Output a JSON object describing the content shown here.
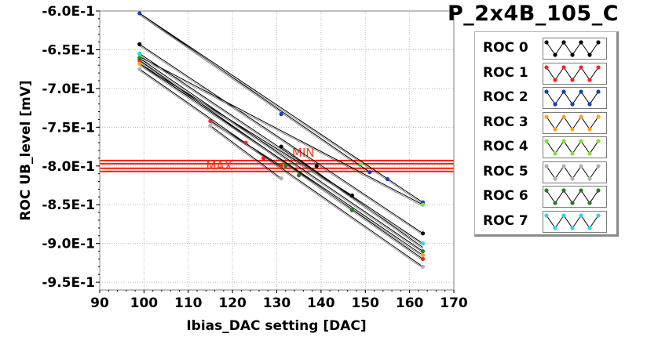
{
  "chart_data": {
    "type": "line",
    "title": "P_2x4B_105_C",
    "xlabel": "Ibias_DAC setting [DAC]",
    "ylabel": "ROC UB_level [mV]",
    "xlim": [
      90,
      170
    ],
    "ylim": [
      -0.96,
      -0.6
    ],
    "xticks": [
      90,
      100,
      110,
      120,
      130,
      140,
      150,
      160,
      170
    ],
    "xtick_labels": [
      "90",
      "100",
      "110",
      "120",
      "130",
      "140",
      "150",
      "160",
      "170"
    ],
    "yticks": [
      -0.6,
      -0.65,
      -0.7,
      -0.75,
      -0.8,
      -0.85,
      -0.9,
      -0.95
    ],
    "ytick_labels": [
      "-6.0E-1",
      "-6.5E-1",
      "-7.0E-1",
      "-7.5E-1",
      "-8.0E-1",
      "-8.5E-1",
      "-9.0E-1",
      "-9.5E-1"
    ],
    "grid": true,
    "legend_position": "right",
    "thresholds": [
      {
        "label": "MAX",
        "y": -0.805,
        "label_x": 117
      },
      {
        "label": "MIN",
        "y": -0.795,
        "label_x": 136
      }
    ],
    "series": [
      {
        "name": "ROC 0",
        "color": "#000000",
        "segments": [
          [
            [
              99,
              -0.603
            ],
            [
              151,
              -0.808
            ]
          ],
          [
            [
              99,
              -0.643
            ],
            [
              163,
              -0.887
            ]
          ],
          [
            [
              99,
              -0.668
            ],
            [
              147,
              -0.838
            ]
          ],
          [
            [
              131,
              -0.775
            ],
            [
              163,
              -0.905
            ]
          ]
        ],
        "points": [
          [
            99,
            -0.643
          ],
          [
            131,
            -0.775
          ],
          [
            139,
            -0.8
          ],
          [
            147,
            -0.838
          ],
          [
            163,
            -0.887
          ]
        ]
      },
      {
        "name": "ROC 1",
        "color": "#ff2020",
        "segments": [
          [
            [
              99,
              -0.664
            ],
            [
              163,
              -0.92
            ]
          ],
          [
            [
              115,
              -0.742
            ],
            [
              131,
              -0.8
            ]
          ]
        ],
        "points": [
          [
            99,
            -0.664
          ],
          [
            115,
            -0.742
          ],
          [
            123,
            -0.77
          ],
          [
            127,
            -0.79
          ],
          [
            131,
            -0.8
          ],
          [
            163,
            -0.92
          ]
        ]
      },
      {
        "name": "ROC 2",
        "color": "#1040c0",
        "segments": [
          [
            [
              99,
              -0.603
            ],
            [
              163,
              -0.847
            ]
          ]
        ],
        "points": [
          [
            99,
            -0.603
          ],
          [
            131,
            -0.733
          ],
          [
            151,
            -0.808
          ],
          [
            155,
            -0.817
          ],
          [
            163,
            -0.847
          ]
        ]
      },
      {
        "name": "ROC 3",
        "color": "#ffa020",
        "segments": [
          [
            [
              99,
              -0.668
            ],
            [
              163,
              -0.915
            ]
          ]
        ],
        "points": [
          [
            99,
            -0.668
          ],
          [
            163,
            -0.915
          ]
        ]
      },
      {
        "name": "ROC 4",
        "color": "#80e040",
        "segments": [
          [
            [
              99,
              -0.659
            ],
            [
              163,
              -0.85
            ]
          ]
        ],
        "points": [
          [
            99,
            -0.659
          ],
          [
            149,
            -0.797
          ],
          [
            163,
            -0.85
          ]
        ]
      },
      {
        "name": "ROC 5",
        "color": "#b0b0b0",
        "segments": [
          [
            [
              99,
              -0.675
            ],
            [
              163,
              -0.93
            ]
          ],
          [
            [
              115,
              -0.748
            ],
            [
              131,
              -0.816
            ]
          ]
        ],
        "points": [
          [
            99,
            -0.675
          ],
          [
            115,
            -0.748
          ],
          [
            131,
            -0.816
          ],
          [
            163,
            -0.93
          ]
        ]
      },
      {
        "name": "ROC 6",
        "color": "#208020",
        "segments": [
          [
            [
              99,
              -0.661
            ],
            [
              163,
              -0.91
            ]
          ]
        ],
        "points": [
          [
            99,
            -0.661
          ],
          [
            132,
            -0.8
          ],
          [
            135,
            -0.812
          ],
          [
            147,
            -0.857
          ],
          [
            163,
            -0.91
          ]
        ]
      },
      {
        "name": "ROC 7",
        "color": "#20d8f0",
        "segments": [
          [
            [
              99,
              -0.655
            ],
            [
              163,
              -0.9
            ]
          ]
        ],
        "points": [
          [
            99,
            -0.655
          ],
          [
            163,
            -0.9
          ]
        ]
      }
    ]
  }
}
